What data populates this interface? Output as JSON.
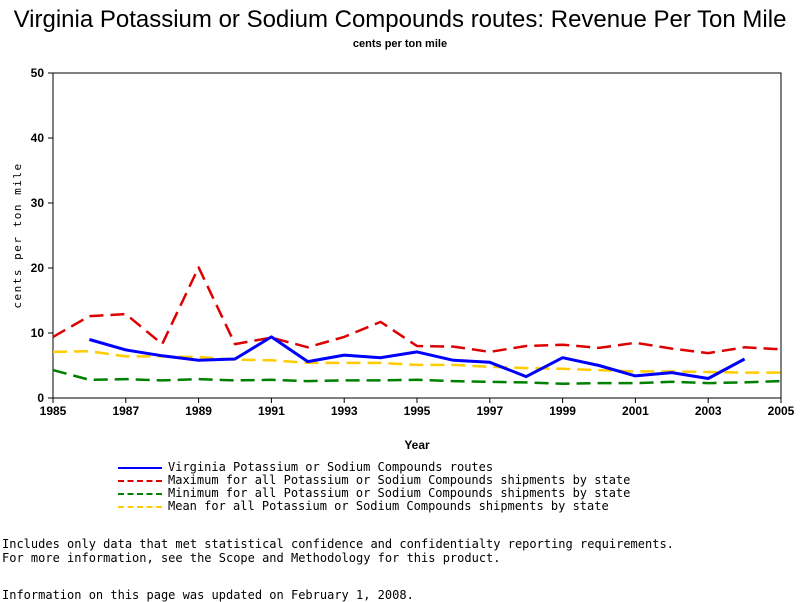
{
  "page": {
    "title": "Virginia Potassium or Sodium Compounds routes: Revenue Per Ton Mile",
    "subtitle": "cents per ton mile",
    "note_line1": "Includes only data that met statistical confidence and confidentialty reporting requirements.",
    "note_line2": "For more information, see the Scope and Methodology for this product.",
    "updated": "Information on this page was updated on February 1, 2008."
  },
  "chart_data": {
    "type": "line",
    "title": "Virginia Potassium or Sodium Compounds routes: Revenue Per Ton Mile",
    "subtitle": "cents per ton mile",
    "xlabel": "Year",
    "ylabel": "cents per ton mile",
    "xlim": [
      1985,
      2005
    ],
    "ylim": [
      0,
      50
    ],
    "xticks": [
      1985,
      1987,
      1989,
      1991,
      1993,
      1995,
      1997,
      1999,
      2001,
      2003,
      2005
    ],
    "yticks": [
      0,
      10,
      20,
      30,
      40,
      50
    ],
    "grid": false,
    "legend_position": "bottom",
    "series": [
      {
        "name": "Virginia Potassium or Sodium Compounds routes",
        "color": "#0000ff",
        "style": "solid",
        "x": [
          1986,
          1987,
          1988,
          1989,
          1990,
          1991,
          1992,
          1993,
          1994,
          1995,
          1996,
          1997,
          1998,
          1999,
          2000,
          2001,
          2002,
          2003,
          2004
        ],
        "y": [
          9.0,
          7.4,
          6.5,
          5.8,
          6.0,
          9.4,
          5.6,
          6.6,
          6.2,
          7.1,
          5.8,
          5.5,
          3.3,
          6.2,
          5.0,
          3.4,
          3.9,
          3.0,
          6.0
        ]
      },
      {
        "name": "Maximum for all Potassium or Sodium Compounds shipments by state",
        "color": "#dd0000",
        "style": "dashed",
        "x": [
          1985,
          1986,
          1987,
          1988,
          1989,
          1990,
          1991,
          1992,
          1993,
          1994,
          1995,
          1996,
          1997,
          1998,
          1999,
          2000,
          2001,
          2002,
          2003,
          2004,
          2005
        ],
        "y": [
          9.4,
          12.6,
          12.9,
          8.3,
          20.1,
          8.3,
          9.3,
          7.8,
          9.4,
          11.7,
          8.0,
          7.9,
          7.1,
          8.0,
          8.2,
          7.7,
          8.5,
          7.6,
          6.9,
          7.8,
          7.5
        ]
      },
      {
        "name": "Minimum for all Potassium or Sodium Compounds shipments by state",
        "color": "#008000",
        "style": "dashed",
        "x": [
          1985,
          1986,
          1987,
          1988,
          1989,
          1990,
          1991,
          1992,
          1993,
          1994,
          1995,
          1996,
          1997,
          1998,
          1999,
          2000,
          2001,
          2002,
          2003,
          2004,
          2005
        ],
        "y": [
          4.3,
          2.8,
          2.9,
          2.7,
          2.9,
          2.7,
          2.8,
          2.6,
          2.7,
          2.7,
          2.8,
          2.6,
          2.5,
          2.4,
          2.2,
          2.3,
          2.3,
          2.5,
          2.3,
          2.4,
          2.6
        ]
      },
      {
        "name": "Mean for all Potassium or Sodium Compounds shipments by state",
        "color": "#ffcc00",
        "style": "dashed",
        "x": [
          1985,
          1986,
          1987,
          1988,
          1989,
          1990,
          1991,
          1992,
          1993,
          1994,
          1995,
          1996,
          1997,
          1998,
          1999,
          2000,
          2001,
          2002,
          2003,
          2004,
          2005
        ],
        "y": [
          7.1,
          7.2,
          6.4,
          6.4,
          6.3,
          5.9,
          5.8,
          5.4,
          5.4,
          5.4,
          5.1,
          5.1,
          4.8,
          4.6,
          4.5,
          4.3,
          4.1,
          4.1,
          4.0,
          3.9,
          3.9
        ]
      }
    ]
  }
}
